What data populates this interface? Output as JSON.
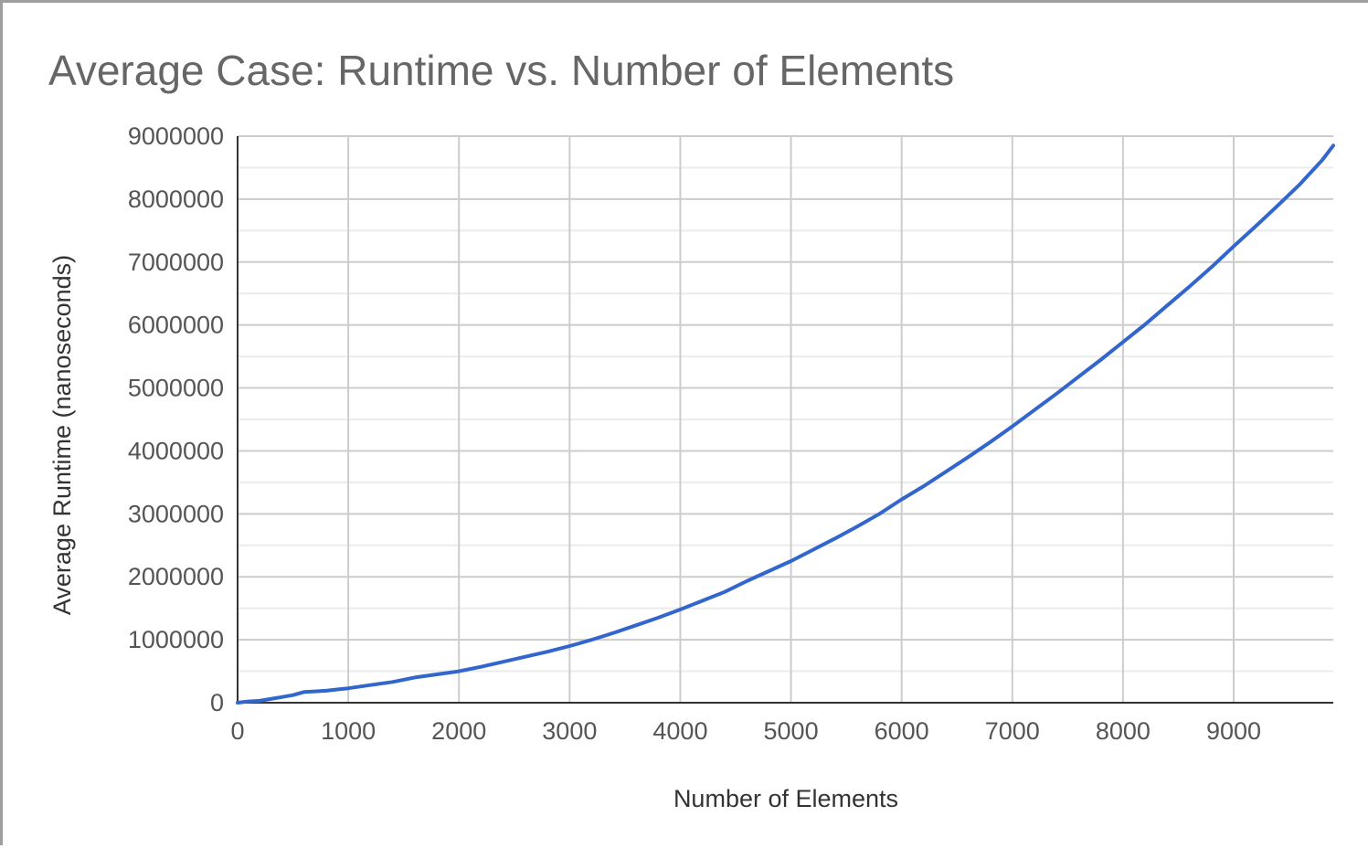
{
  "chart_data": {
    "type": "line",
    "title": "Average Case: Runtime vs. Number of Elements",
    "xlabel": "Number of Elements",
    "ylabel": "Average Runtime (nanoseconds)",
    "xlim": [
      0,
      9900
    ],
    "ylim": [
      0,
      9000000
    ],
    "xticks": [
      0,
      1000,
      2000,
      3000,
      4000,
      5000,
      6000,
      7000,
      8000,
      9000
    ],
    "yticks": [
      0,
      1000000,
      2000000,
      3000000,
      4000000,
      5000000,
      6000000,
      7000000,
      8000000,
      9000000
    ],
    "grid": true,
    "legend": "none",
    "series_color": "#3366cc",
    "series": [
      {
        "x": [
          0,
          100,
          200,
          300,
          400,
          500,
          600,
          700,
          800,
          900,
          1000,
          1200,
          1400,
          1600,
          1800,
          2000,
          2200,
          2400,
          2600,
          2800,
          3000,
          3200,
          3400,
          3600,
          3800,
          4000,
          4200,
          4400,
          4600,
          4800,
          5000,
          5200,
          5400,
          5600,
          5800,
          6000,
          6200,
          6400,
          6600,
          6800,
          7000,
          7200,
          7400,
          7600,
          7800,
          8000,
          8200,
          8400,
          8600,
          8800,
          9000,
          9200,
          9400,
          9600,
          9800,
          9900
        ],
        "y": [
          0,
          20000,
          30000,
          60000,
          90000,
          120000,
          170000,
          180000,
          190000,
          210000,
          230000,
          280000,
          330000,
          400000,
          450000,
          500000,
          570000,
          650000,
          730000,
          810000,
          900000,
          1000000,
          1110000,
          1230000,
          1350000,
          1480000,
          1620000,
          1760000,
          1930000,
          2090000,
          2250000,
          2430000,
          2610000,
          2800000,
          3000000,
          3230000,
          3440000,
          3670000,
          3900000,
          4140000,
          4390000,
          4650000,
          4910000,
          5180000,
          5450000,
          5730000,
          6010000,
          6310000,
          6610000,
          6920000,
          7250000,
          7570000,
          7900000,
          8240000,
          8620000,
          8850000
        ]
      }
    ]
  }
}
